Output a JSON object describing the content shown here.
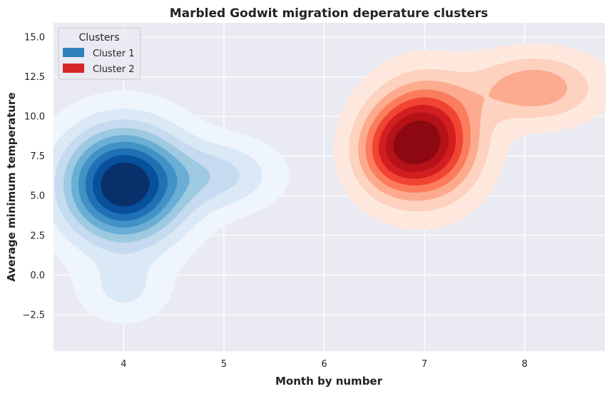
{
  "chart_data": {
    "type": "kde-contour",
    "title": "Marbled Godwit migration deperature clusters",
    "xlabel": "Month by number",
    "ylabel": "Average minimum temperature",
    "xlim": [
      3.3,
      8.8
    ],
    "ylim": [
      -4.8,
      15.9
    ],
    "xticks": [
      4,
      5,
      6,
      7,
      8
    ],
    "xtick_labels": [
      "4",
      "5",
      "6",
      "7",
      "8"
    ],
    "yticks": [
      -2.5,
      0.0,
      2.5,
      5.0,
      7.5,
      10.0,
      12.5,
      15.0
    ],
    "ytick_labels": [
      "−2.5",
      "0.0",
      "2.5",
      "5.0",
      "7.5",
      "10.0",
      "12.5",
      "15.0"
    ],
    "grid": true,
    "legend": {
      "title": "Clusters",
      "placement": "top-left",
      "entries": [
        {
          "label": "Cluster 1",
          "color": "#3182bd"
        },
        {
          "label": "Cluster 2",
          "color": "#d62728"
        }
      ]
    },
    "series": [
      {
        "name": "Cluster 1",
        "colormap": "Blues",
        "level_colors": [
          "#eff5fc",
          "#dbe9f6",
          "#c6dbef",
          "#9ecae1",
          "#6baed6",
          "#4292c6",
          "#2171b5",
          "#08519c",
          "#08306b"
        ],
        "density_centers": [
          {
            "x": 4.0,
            "y": 5.7,
            "sx": 0.42,
            "sy": 2.5,
            "w": 1.0
          },
          {
            "x": 5.0,
            "y": 6.3,
            "sx": 0.38,
            "sy": 1.5,
            "w": 0.26
          },
          {
            "x": 4.0,
            "y": -1.0,
            "sx": 0.3,
            "sy": 1.4,
            "w": 0.17
          }
        ]
      },
      {
        "name": "Cluster 2",
        "colormap": "Reds",
        "level_colors": [
          "#fee8de",
          "#fdd2bf",
          "#fcab8f",
          "#fb7d5d",
          "#f14432",
          "#d21f20",
          "#b61318",
          "#8e0912"
        ],
        "density_centers": [
          {
            "x": 7.0,
            "y": 8.5,
            "sx": 0.35,
            "sy": 2.4,
            "w": 1.0
          },
          {
            "x": 8.1,
            "y": 11.8,
            "sx": 0.42,
            "sy": 1.45,
            "w": 0.42
          },
          {
            "x": 6.62,
            "y": 7.6,
            "sx": 0.25,
            "sy": 1.8,
            "w": 0.28
          }
        ]
      }
    ]
  }
}
